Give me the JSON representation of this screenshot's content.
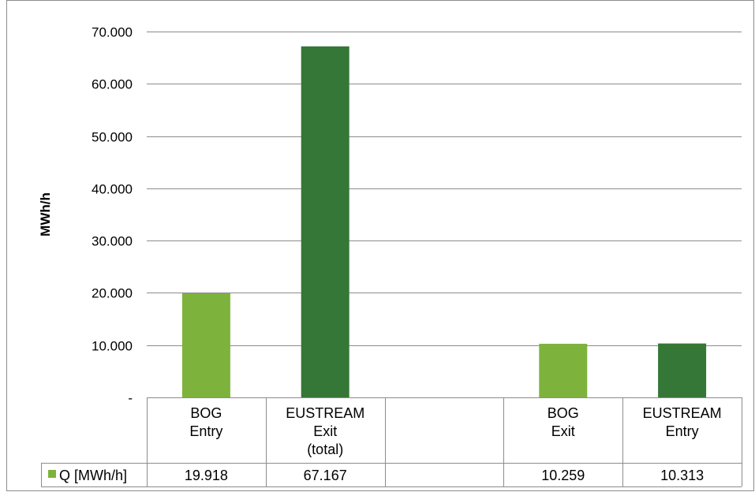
{
  "chart_data": {
    "type": "bar",
    "ylabel": "MWh/h",
    "ylim": [
      0,
      70000
    ],
    "yticks": [
      0,
      10000,
      20000,
      30000,
      40000,
      50000,
      60000,
      70000
    ],
    "ytick_labels": [
      "-",
      "10.000",
      "20.000",
      "30.000",
      "40.000",
      "50.000",
      "60.000",
      "70.000"
    ],
    "grid": true,
    "categories": [
      {
        "lines": [
          "BOG",
          "Entry"
        ]
      },
      {
        "lines": [
          "EUSTREAM",
          "Exit",
          "(total)"
        ]
      },
      {
        "lines": []
      },
      {
        "lines": [
          "BOG",
          "Exit"
        ]
      },
      {
        "lines": [
          "EUSTREAM",
          "Entry"
        ]
      }
    ],
    "series": [
      {
        "name": "Q [MWh/h]",
        "values": [
          19918,
          67167,
          null,
          10259,
          10313
        ],
        "value_labels": [
          "19.918",
          "67.167",
          "",
          "10.259",
          "10.313"
        ],
        "colors": [
          "#7db33c",
          "#357737",
          null,
          "#7db33c",
          "#357737"
        ]
      }
    ],
    "legend": "data-table",
    "legend_color": "#7db33c"
  }
}
